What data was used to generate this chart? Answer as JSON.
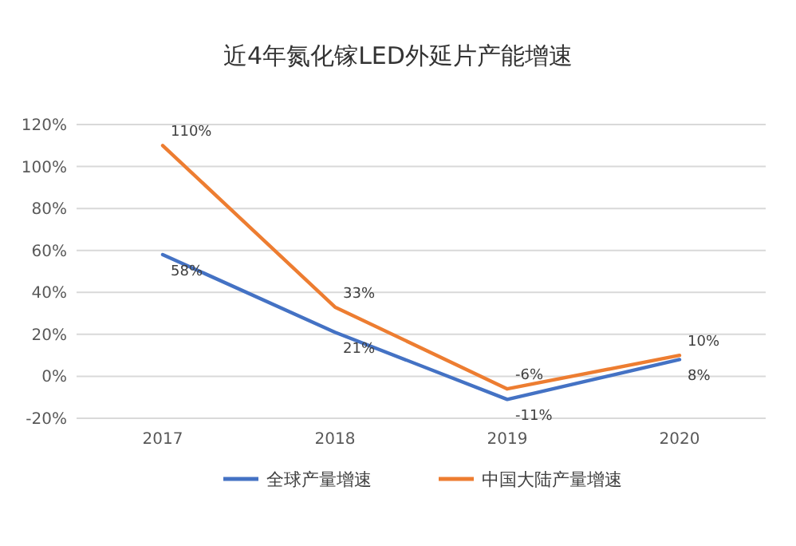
{
  "chart_data": {
    "type": "line",
    "title": "近4年氮化镓LED外延片产能增速",
    "categories": [
      "2017",
      "2018",
      "2019",
      "2020"
    ],
    "series": [
      {
        "name": "全球产量增速",
        "color": "#4472c4",
        "values": [
          58,
          21,
          -11,
          8
        ],
        "value_labels": [
          "58%",
          "21%",
          "-11%",
          "8%"
        ]
      },
      {
        "name": "中国大陆产量增速",
        "color": "#ed7d31",
        "values": [
          110,
          33,
          -6,
          10
        ],
        "value_labels": [
          "110%",
          "33%",
          "-6%",
          "10%"
        ]
      }
    ],
    "ylim": [
      -20,
      120
    ],
    "yticks": [
      {
        "value": -20,
        "label": "-20%"
      },
      {
        "value": 0,
        "label": "0%"
      },
      {
        "value": 20,
        "label": "20%"
      },
      {
        "value": 40,
        "label": "40%"
      },
      {
        "value": 60,
        "label": "60%"
      },
      {
        "value": 80,
        "label": "80%"
      },
      {
        "value": 100,
        "label": "100%"
      },
      {
        "value": 120,
        "label": "120%"
      }
    ],
    "grid": "y",
    "legend": "bottom",
    "marker": "none",
    "line_style": "solid"
  }
}
